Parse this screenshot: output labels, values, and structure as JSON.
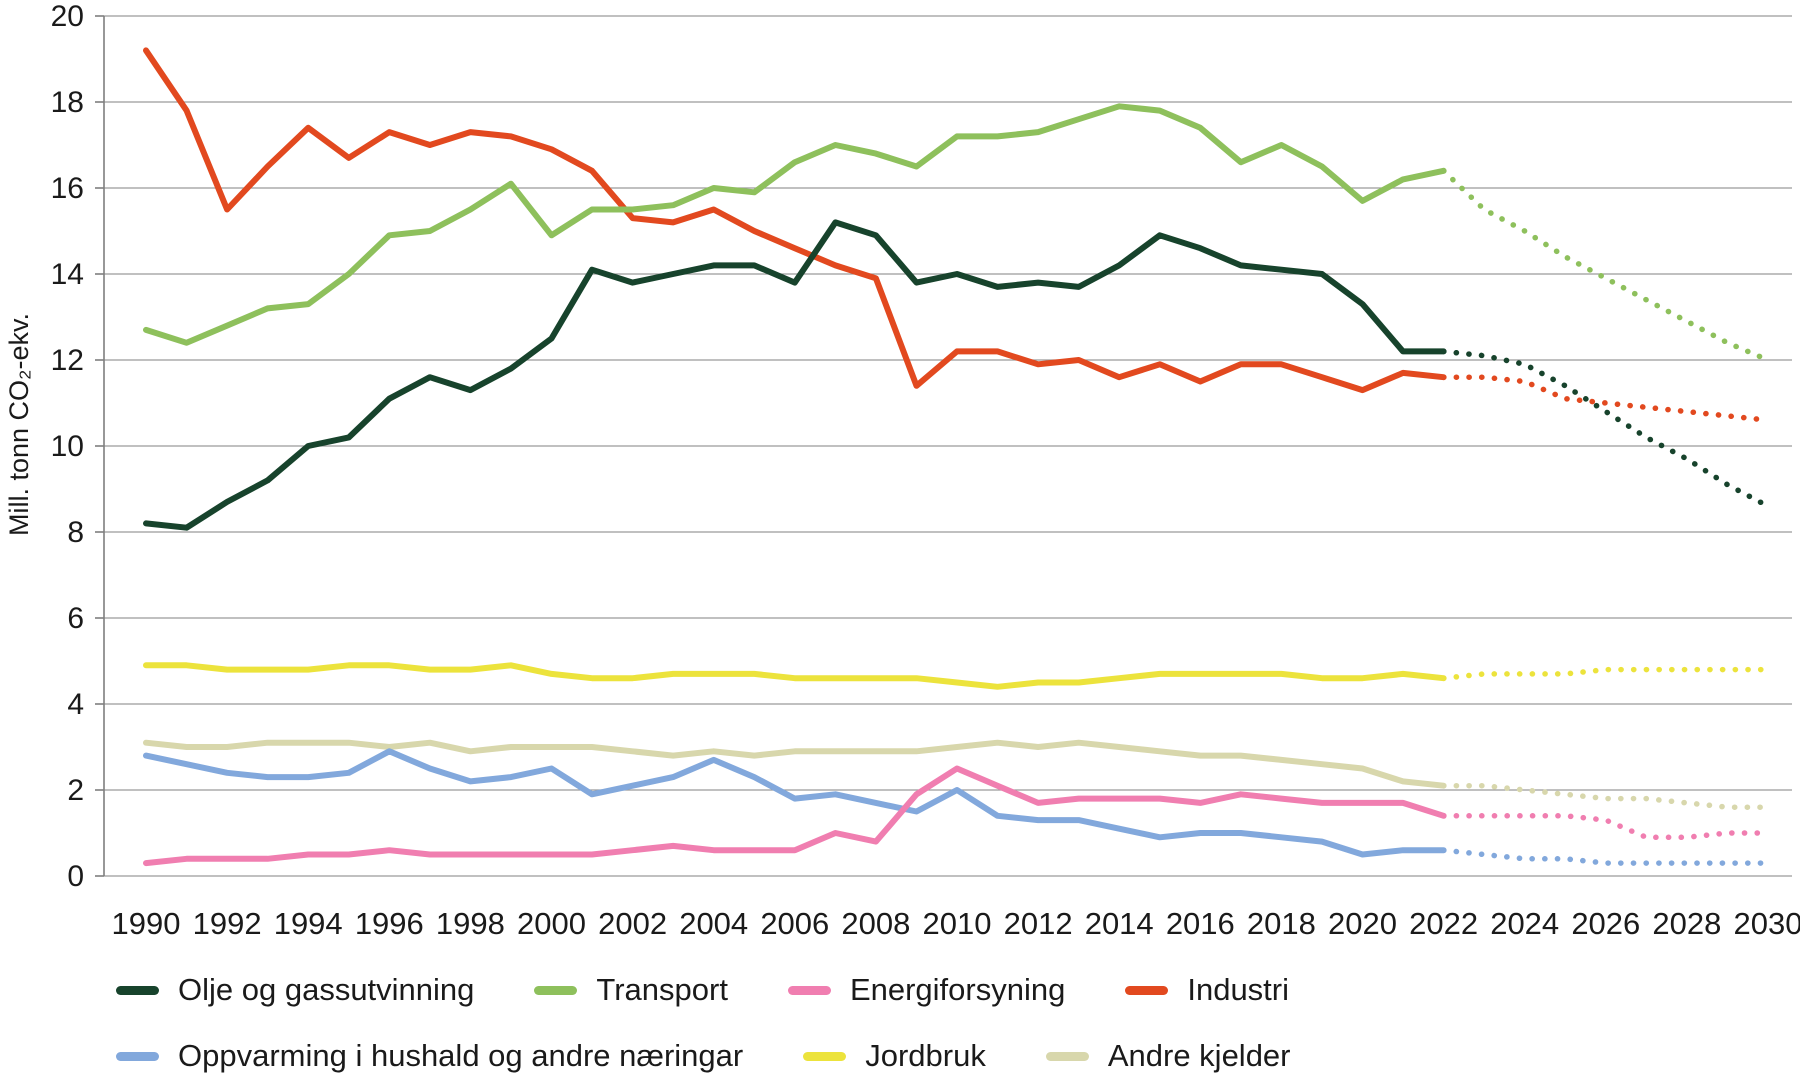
{
  "chart_data": {
    "type": "line",
    "title": "",
    "ylabel": "Mill. tonn CO₂-ekv.",
    "ylim": [
      0,
      20
    ],
    "ytick_step": 2,
    "x_start": 1990,
    "x_end": 2030,
    "xtick_step": 2,
    "projection_start_year": 2022,
    "grid": true,
    "legend_position": "bottom",
    "colors": {
      "grid": "#9b9b9b",
      "axis": "#7f7f7f",
      "text": "#1a1a1a",
      "background": "#ffffff"
    },
    "years": [
      1990,
      1991,
      1992,
      1993,
      1994,
      1995,
      1996,
      1997,
      1998,
      1999,
      2000,
      2001,
      2002,
      2003,
      2004,
      2005,
      2006,
      2007,
      2008,
      2009,
      2010,
      2011,
      2012,
      2013,
      2014,
      2015,
      2016,
      2017,
      2018,
      2019,
      2020,
      2021,
      2022,
      2023,
      2024,
      2025,
      2026,
      2027,
      2028,
      2029,
      2030
    ],
    "series": [
      {
        "id": "olje-og-gassutvinning",
        "name": "Olje og gassutvinning",
        "color": "#17432c",
        "values": [
          8.2,
          8.1,
          8.7,
          9.2,
          10.0,
          10.2,
          11.1,
          11.6,
          11.3,
          11.8,
          12.5,
          14.1,
          13.8,
          14.0,
          14.2,
          14.2,
          13.8,
          15.2,
          14.9,
          13.8,
          14.0,
          13.7,
          13.8,
          13.7,
          14.2,
          14.9,
          14.6,
          14.2,
          14.1,
          14.0,
          13.3,
          12.2,
          12.2,
          12.1,
          11.9,
          11.4,
          10.8,
          10.2,
          9.7,
          9.1,
          8.6
        ]
      },
      {
        "id": "transport",
        "name": "Transport",
        "color": "#8ec05c",
        "values": [
          12.7,
          12.4,
          12.8,
          13.2,
          13.3,
          14.0,
          14.9,
          15.0,
          15.5,
          16.1,
          14.9,
          15.5,
          15.5,
          15.6,
          16.0,
          15.9,
          16.6,
          17.0,
          16.8,
          16.5,
          17.2,
          17.2,
          17.3,
          17.6,
          17.9,
          17.8,
          17.4,
          16.6,
          17.0,
          16.5,
          15.7,
          16.2,
          16.4,
          15.5,
          15.0,
          14.4,
          13.9,
          13.4,
          12.9,
          12.4,
          12.0
        ]
      },
      {
        "id": "energiforsyning",
        "name": "Energiforsyning",
        "color": "#f07eb0",
        "values": [
          0.3,
          0.4,
          0.4,
          0.4,
          0.5,
          0.5,
          0.6,
          0.5,
          0.5,
          0.5,
          0.5,
          0.5,
          0.6,
          0.7,
          0.6,
          0.6,
          0.6,
          1.0,
          0.8,
          1.9,
          2.5,
          2.1,
          1.7,
          1.8,
          1.8,
          1.8,
          1.7,
          1.9,
          1.8,
          1.7,
          1.7,
          1.7,
          1.4,
          1.4,
          1.4,
          1.4,
          1.3,
          0.9,
          0.9,
          1.0,
          1.0
        ]
      },
      {
        "id": "industri",
        "name": "Industri",
        "color": "#e2491f",
        "values": [
          19.2,
          17.8,
          15.5,
          16.5,
          17.4,
          16.7,
          17.3,
          17.0,
          17.3,
          17.2,
          16.9,
          16.4,
          15.3,
          15.2,
          15.5,
          15.0,
          14.6,
          14.2,
          13.9,
          11.4,
          12.2,
          12.2,
          11.9,
          12.0,
          11.6,
          11.9,
          11.5,
          11.9,
          11.9,
          11.6,
          11.3,
          11.7,
          11.6,
          11.6,
          11.5,
          11.1,
          11.0,
          10.9,
          10.8,
          10.7,
          10.6
        ]
      },
      {
        "id": "oppvarming-i-hushald-og-andre-naeringar",
        "name": "Oppvarming i hushald og andre næringar",
        "color": "#82a8dc",
        "values": [
          2.8,
          2.6,
          2.4,
          2.3,
          2.3,
          2.4,
          2.9,
          2.5,
          2.2,
          2.3,
          2.5,
          1.9,
          2.1,
          2.3,
          2.7,
          2.3,
          1.8,
          1.9,
          1.7,
          1.5,
          2.0,
          1.4,
          1.3,
          1.3,
          1.1,
          0.9,
          1.0,
          1.0,
          0.9,
          0.8,
          0.5,
          0.6,
          0.6,
          0.5,
          0.4,
          0.4,
          0.3,
          0.3,
          0.3,
          0.3,
          0.3
        ]
      },
      {
        "id": "jordbruk",
        "name": "Jordbruk",
        "color": "#ece33c",
        "values": [
          4.9,
          4.9,
          4.8,
          4.8,
          4.8,
          4.9,
          4.9,
          4.8,
          4.8,
          4.9,
          4.7,
          4.6,
          4.6,
          4.7,
          4.7,
          4.7,
          4.6,
          4.6,
          4.6,
          4.6,
          4.5,
          4.4,
          4.5,
          4.5,
          4.6,
          4.7,
          4.7,
          4.7,
          4.7,
          4.6,
          4.6,
          4.7,
          4.6,
          4.7,
          4.7,
          4.7,
          4.8,
          4.8,
          4.8,
          4.8,
          4.8
        ]
      },
      {
        "id": "andre-kjelder",
        "name": "Andre kjelder",
        "color": "#d8d7ac",
        "values": [
          3.1,
          3.0,
          3.0,
          3.1,
          3.1,
          3.1,
          3.0,
          3.1,
          2.9,
          3.0,
          3.0,
          3.0,
          2.9,
          2.8,
          2.9,
          2.8,
          2.9,
          2.9,
          2.9,
          2.9,
          3.0,
          3.1,
          3.0,
          3.1,
          3.0,
          2.9,
          2.8,
          2.8,
          2.7,
          2.6,
          2.5,
          2.2,
          2.1,
          2.1,
          2.0,
          1.9,
          1.8,
          1.8,
          1.7,
          1.6,
          1.6
        ]
      }
    ],
    "legend_rows": [
      [
        0,
        1,
        2,
        3
      ],
      [
        4,
        5,
        6
      ]
    ],
    "draw_order": [
      6,
      5,
      4,
      2,
      3,
      1,
      0
    ]
  }
}
